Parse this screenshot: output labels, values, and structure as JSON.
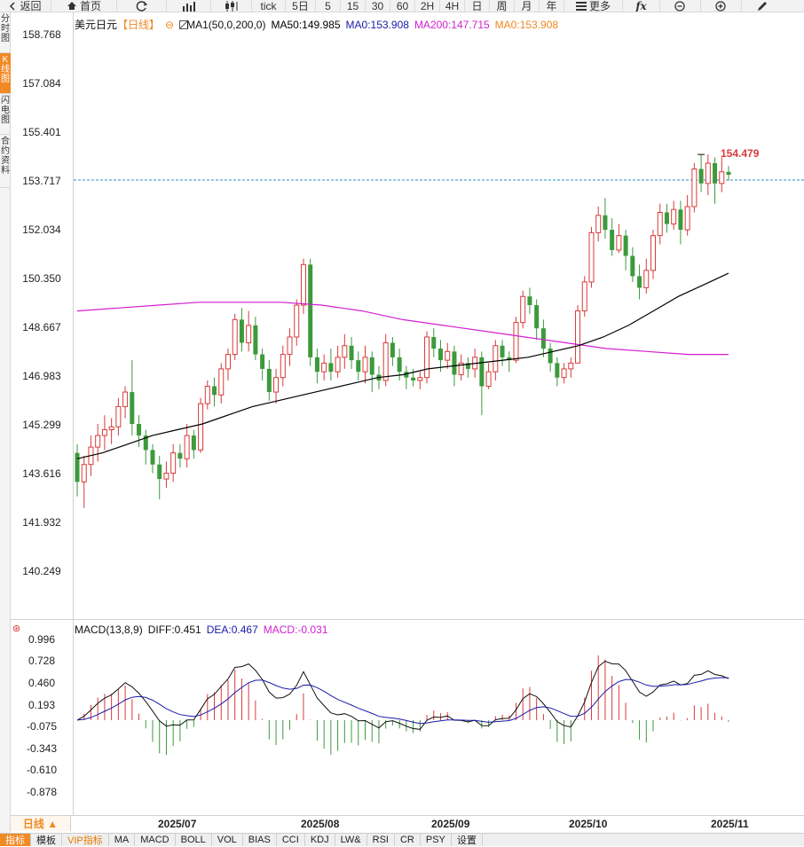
{
  "toolbar": {
    "back_label": "返回",
    "home_label": "首页",
    "tick_label": "tick",
    "periods": [
      "5日",
      "5",
      "15",
      "30",
      "60",
      "2H",
      "4H",
      "日",
      "周",
      "月",
      "年"
    ],
    "more_label": "更多"
  },
  "side_tabs": [
    "分时图",
    "K线图",
    "闪电图",
    "合约资料"
  ],
  "legend": {
    "symbol": "美元日元",
    "period_tag": "【日线】",
    "ma_label": "MA1(50,0,200,0)",
    "ma50": "MA50:149.985",
    "ma0": "MA0:153.908",
    "ma200": "MA200:147.715",
    "ma0b": "MA0:153.908",
    "colors": {
      "ma50": "#000000",
      "ma0": "#1a1aa8",
      "ma200": "#d21fd2",
      "ma0b": "#f08a24"
    }
  },
  "price_axis": [
    "158.768",
    "157.084",
    "155.401",
    "153.717",
    "152.034",
    "150.350",
    "148.667",
    "146.983",
    "145.299",
    "143.616",
    "141.932",
    "140.249"
  ],
  "last_price_marker": "154.479",
  "macd_legend": {
    "title": "MACD(13,8,9)",
    "diff": "DIFF:0.451",
    "dea": "DEA:0.467",
    "macd": "MACD:-0.031"
  },
  "macd_axis": [
    "0.996",
    "0.728",
    "0.460",
    "0.193",
    "-0.075",
    "-0.343",
    "-0.610",
    "-0.878"
  ],
  "x_axis": [
    "2025/07",
    "2025/08",
    "2025/09",
    "2025/10",
    "2025/11"
  ],
  "period_selector": "日线 ▲",
  "bottom_tabs": [
    "指标",
    "模板",
    "VIP指标",
    "MA",
    "MACD",
    "BOLL",
    "VOL",
    "BIAS",
    "CCI",
    "KDJ",
    "LW&",
    "RSI",
    "CR",
    "PSY",
    "设置"
  ],
  "colors": {
    "up": "#d93a3a",
    "down": "#3c9a3c",
    "accent": "#f08a24"
  },
  "chart_data": {
    "type": "candlestick",
    "ylim": [
      140.249,
      158.768
    ],
    "candles": [
      [
        144.3,
        143.3,
        144.6,
        142.8
      ],
      [
        143.3,
        143.9,
        144.2,
        142.4
      ],
      [
        143.9,
        144.5,
        144.9,
        143.5
      ],
      [
        144.5,
        144.9,
        145.3,
        144.0
      ],
      [
        144.9,
        145.1,
        145.6,
        144.4
      ],
      [
        145.1,
        145.2,
        145.5,
        144.6
      ],
      [
        145.2,
        145.9,
        146.2,
        144.9
      ],
      [
        145.9,
        146.4,
        146.6,
        145.5
      ],
      [
        146.4,
        145.3,
        147.5,
        144.9
      ],
      [
        145.3,
        144.9,
        145.6,
        144.5
      ],
      [
        144.9,
        144.4,
        145.1,
        143.9
      ],
      [
        144.4,
        143.9,
        144.6,
        143.6
      ],
      [
        143.9,
        143.4,
        144.2,
        142.7
      ],
      [
        143.4,
        143.6,
        144.0,
        143.1
      ],
      [
        143.6,
        144.3,
        144.6,
        143.3
      ],
      [
        144.3,
        144.1,
        144.6,
        143.8
      ],
      [
        144.1,
        144.9,
        145.3,
        143.8
      ],
      [
        144.9,
        144.4,
        145.1,
        144.1
      ],
      [
        144.4,
        146.0,
        146.2,
        144.3
      ],
      [
        146.0,
        146.6,
        146.8,
        145.8
      ],
      [
        146.6,
        146.3,
        146.9,
        145.9
      ],
      [
        146.3,
        147.2,
        147.4,
        146.0
      ],
      [
        147.2,
        147.7,
        147.9,
        146.8
      ],
      [
        147.7,
        148.9,
        149.1,
        147.5
      ],
      [
        148.9,
        148.1,
        149.3,
        147.8
      ],
      [
        148.1,
        148.7,
        149.2,
        147.8
      ],
      [
        148.7,
        147.7,
        149.0,
        147.5
      ],
      [
        147.7,
        147.2,
        147.9,
        146.8
      ],
      [
        147.2,
        146.4,
        147.5,
        146.1
      ],
      [
        146.4,
        146.9,
        147.2,
        146.0
      ],
      [
        146.9,
        147.7,
        148.0,
        146.6
      ],
      [
        147.7,
        148.3,
        148.6,
        147.3
      ],
      [
        148.3,
        149.4,
        149.6,
        148.0
      ],
      [
        149.4,
        150.8,
        151.0,
        149.1
      ],
      [
        150.8,
        147.6,
        151.0,
        147.3
      ],
      [
        147.6,
        147.1,
        147.9,
        146.7
      ],
      [
        147.1,
        147.4,
        147.7,
        146.8
      ],
      [
        147.4,
        147.1,
        147.9,
        146.8
      ],
      [
        147.1,
        147.6,
        148.0,
        146.9
      ],
      [
        147.6,
        148.0,
        148.4,
        147.2
      ],
      [
        148.0,
        147.5,
        148.3,
        147.2
      ],
      [
        147.5,
        147.1,
        147.8,
        146.8
      ],
      [
        147.1,
        147.6,
        148.0,
        146.7
      ],
      [
        147.6,
        147.0,
        147.8,
        146.4
      ],
      [
        147.0,
        146.8,
        147.3,
        146.5
      ],
      [
        146.8,
        148.1,
        148.4,
        146.6
      ],
      [
        148.1,
        147.6,
        148.3,
        147.3
      ],
      [
        147.6,
        147.1,
        147.9,
        146.8
      ],
      [
        147.1,
        146.9,
        147.3,
        146.5
      ],
      [
        146.9,
        146.8,
        147.2,
        146.6
      ],
      [
        146.8,
        146.9,
        147.1,
        146.5
      ],
      [
        146.9,
        148.3,
        148.5,
        146.7
      ],
      [
        148.3,
        147.9,
        148.6,
        147.6
      ],
      [
        147.9,
        147.5,
        148.2,
        147.1
      ],
      [
        147.5,
        147.8,
        148.1,
        147.2
      ],
      [
        147.8,
        147.0,
        148.0,
        146.6
      ],
      [
        147.0,
        147.4,
        147.7,
        146.8
      ],
      [
        147.4,
        147.2,
        147.6,
        146.9
      ],
      [
        147.2,
        147.6,
        147.9,
        146.9
      ],
      [
        147.6,
        146.6,
        147.8,
        145.6
      ],
      [
        146.6,
        147.1,
        147.4,
        146.5
      ],
      [
        147.1,
        148.0,
        148.2,
        146.8
      ],
      [
        148.0,
        147.6,
        148.2,
        147.3
      ],
      [
        147.6,
        147.5,
        147.8,
        147.1
      ],
      [
        147.5,
        148.8,
        149.0,
        147.4
      ],
      [
        148.8,
        149.7,
        149.9,
        148.6
      ],
      [
        149.7,
        149.4,
        150.0,
        149.1
      ],
      [
        149.4,
        148.6,
        149.6,
        148.2
      ],
      [
        148.6,
        147.9,
        148.9,
        147.6
      ],
      [
        147.9,
        147.4,
        148.1,
        147.1
      ],
      [
        147.4,
        146.9,
        147.6,
        146.6
      ],
      [
        146.9,
        147.2,
        147.4,
        146.7
      ],
      [
        147.2,
        147.4,
        147.6,
        146.9
      ],
      [
        147.4,
        149.2,
        149.4,
        148.6
      ],
      [
        149.2,
        150.2,
        150.4,
        149.0
      ],
      [
        150.2,
        151.9,
        152.1,
        150.0
      ],
      [
        151.9,
        152.5,
        152.8,
        151.6
      ],
      [
        152.5,
        152.0,
        153.1,
        151.7
      ],
      [
        152.0,
        151.3,
        152.4,
        151.1
      ],
      [
        151.3,
        151.8,
        152.2,
        151.2
      ],
      [
        151.8,
        151.1,
        152.0,
        150.6
      ],
      [
        151.1,
        150.4,
        151.4,
        150.2
      ],
      [
        150.4,
        150.0,
        150.8,
        149.6
      ],
      [
        150.0,
        150.6,
        151.0,
        149.8
      ],
      [
        150.6,
        151.8,
        152.0,
        150.3
      ],
      [
        151.8,
        152.6,
        152.9,
        151.5
      ],
      [
        152.6,
        152.2,
        152.9,
        151.9
      ],
      [
        152.2,
        152.7,
        153.0,
        152.0
      ],
      [
        152.7,
        152.0,
        153.0,
        151.5
      ],
      [
        152.0,
        152.8,
        153.2,
        151.8
      ],
      [
        152.8,
        154.1,
        154.3,
        152.6
      ],
      [
        154.1,
        153.6,
        154.6,
        153.3
      ],
      [
        153.6,
        154.3,
        154.6,
        153.2
      ],
      [
        154.3,
        153.6,
        154.5,
        152.9
      ],
      [
        153.6,
        154.0,
        154.5,
        153.3
      ],
      [
        154.0,
        153.9,
        154.2,
        153.7
      ]
    ],
    "ma50": [
      144.1,
      144.3,
      144.6,
      144.9,
      145.1,
      145.3,
      145.6,
      145.9,
      146.1,
      146.3,
      146.5,
      146.7,
      146.9,
      147.0,
      147.2,
      147.3,
      147.4,
      147.5,
      147.6,
      147.8,
      148.0,
      148.3,
      148.7,
      149.2,
      149.7,
      150.1,
      150.5
    ],
    "ma200": [
      149.2,
      149.3,
      149.4,
      149.5,
      149.5,
      149.5,
      149.4,
      149.2,
      148.9,
      148.7,
      148.5,
      148.3,
      148.1,
      147.9,
      147.8,
      147.7,
      147.7
    ],
    "macd_ylim": [
      -0.878,
      0.996
    ]
  }
}
